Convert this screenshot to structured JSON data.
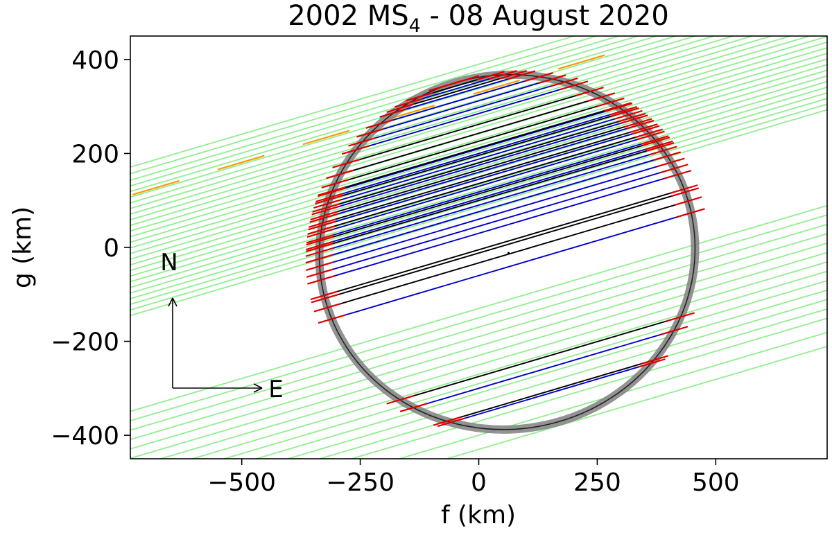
{
  "chart_data": {
    "type": "line",
    "title": "2002 MS",
    "title_subscript": "4",
    "title_suffix": " - 08 August 2020",
    "xlabel": "f (km)",
    "ylabel": "g (km)",
    "xlim": [
      -735,
      735
    ],
    "ylim": [
      -450,
      450
    ],
    "xticks": [
      -500,
      -250,
      0,
      250,
      500
    ],
    "yticks": [
      -400,
      -200,
      0,
      200,
      400
    ],
    "xtick_labels": [
      "−500",
      "−250",
      "0",
      "250",
      "500"
    ],
    "ytick_labels": [
      "−400",
      "−200",
      "0",
      "200",
      "400"
    ],
    "grid": false,
    "chord_slope": 0.298,
    "ellipse": {
      "center": [
        60,
        -10
      ],
      "semi_major": 397,
      "semi_minor": 377,
      "angle_deg": 10
    },
    "ellipse_band_width": 12,
    "center_marker": [
      63,
      -12
    ],
    "orientation": {
      "north_label": "N",
      "east_label": "E"
    },
    "colors": {
      "positive_chord": "#0000cc",
      "reference_chord": "#000000",
      "error_bar": "#dd0000",
      "negative_chord": "#90ee90",
      "overcast_chord": "#ff9900",
      "ellipse_band": "#808080"
    },
    "series": [
      {
        "name": "negative",
        "color": "#90ee90",
        "intercepts": [
          390,
          376,
          362,
          350,
          338,
          326,
          314,
          302,
          290,
          278,
          266,
          254,
          242,
          230,
          218,
          206,
          194,
          182,
          170,
          158,
          146,
          134,
          122,
          110,
          98,
          86,
          74,
          -130,
          -150,
          -170,
          -190,
          -210,
          -230,
          -250,
          -270,
          -290,
          -310,
          -330,
          -350,
          -370,
          -400,
          -430
        ]
      },
      {
        "name": "overcast",
        "color": "#ff9900",
        "intercepts": [
          330
        ]
      },
      {
        "name": "positive",
        "color": "#0000cc",
        "intercepts": [
          378,
          365,
          352,
          340,
          325,
          312,
          298,
          285,
          210,
          200,
          188,
          175,
          160,
          145,
          130,
          118,
          104,
          90,
          76,
          60,
          45,
          30,
          -60,
          -300,
          -355
        ]
      },
      {
        "name": "reference",
        "color": "#000000",
        "intercepts": [
          382,
          370,
          358,
          346,
          262,
          243,
          226,
          212,
          196,
          180,
          165,
          150,
          136,
          114,
          100,
          -5,
          -12,
          -33,
          -275,
          -350
        ]
      }
    ]
  }
}
